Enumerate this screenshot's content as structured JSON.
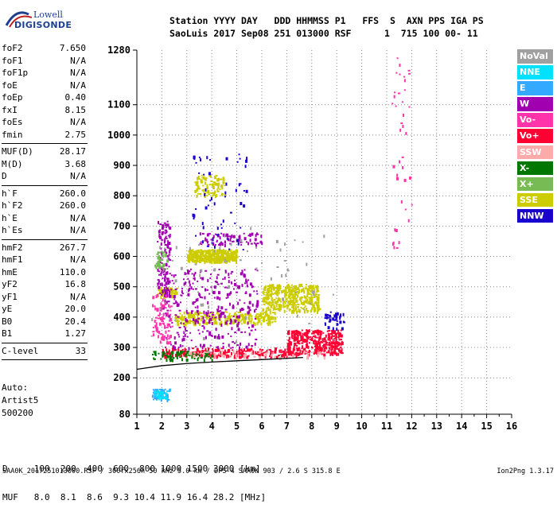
{
  "logo": {
    "line1": "Lowell",
    "line2": "DIGISONDE"
  },
  "header": {
    "row1": "Station YYYY DAY   DDD HHMMSS P1   FFS  S  AXN PPS IGA PS",
    "row2": "SaoLuis 2017 Sep08 251 013000 RSF      1  715 100 00- 11"
  },
  "params": [
    [
      {
        "k": "foF2",
        "v": "7.650"
      },
      {
        "k": "foF1",
        "v": "N/A"
      },
      {
        "k": "foF1p",
        "v": "N/A"
      },
      {
        "k": "foE",
        "v": "N/A"
      },
      {
        "k": "foEp",
        "v": "0.40"
      },
      {
        "k": "fxI",
        "v": "8.15"
      },
      {
        "k": "foEs",
        "v": "N/A"
      },
      {
        "k": "fmin",
        "v": "2.75"
      }
    ],
    [
      {
        "k": "MUF(D)",
        "v": "28.17"
      },
      {
        "k": "M(D)",
        "v": "3.68"
      },
      {
        "k": "D",
        "v": "N/A"
      }
    ],
    [
      {
        "k": "h`F",
        "v": "260.0"
      },
      {
        "k": "h`F2",
        "v": "260.0"
      },
      {
        "k": "h`E",
        "v": "N/A"
      },
      {
        "k": "h`Es",
        "v": "N/A"
      }
    ],
    [
      {
        "k": "hmF2",
        "v": "267.7"
      },
      {
        "k": "hmF1",
        "v": "N/A"
      },
      {
        "k": "hmE",
        "v": "110.0"
      },
      {
        "k": "yF2",
        "v": "16.8"
      },
      {
        "k": "yF1",
        "v": "N/A"
      },
      {
        "k": "yE",
        "v": "20.0"
      },
      {
        "k": "B0",
        "v": "20.4"
      },
      {
        "k": "B1",
        "v": "1.27"
      }
    ],
    [
      {
        "k": "C-level",
        "v": "33"
      }
    ]
  ],
  "autoscale": {
    "line1": "Auto:",
    "line2": "Artist5",
    "line3": "500200"
  },
  "legend": [
    {
      "label": "NoVal",
      "color": "#a0a0a0"
    },
    {
      "label": "NNE",
      "color": "#00e0ff"
    },
    {
      "label": "E",
      "color": "#33aaff"
    },
    {
      "label": "W",
      "color": "#a000b0"
    },
    {
      "label": "Vo-",
      "color": "#ff33aa"
    },
    {
      "label": "Vo+",
      "color": "#ff0033"
    },
    {
      "label": "SSW",
      "color": "#ffaaaa"
    },
    {
      "label": "X-",
      "color": "#007700"
    },
    {
      "label": "X+",
      "color": "#77bb55"
    },
    {
      "label": "SSE",
      "color": "#cccc00"
    },
    {
      "label": "NNW",
      "color": "#1a00cc"
    }
  ],
  "dtable": {
    "d_row": "D     100  200  400  600  800 1000 1500 3000 [km]",
    "muf_row": "MUF   8.0  8.1  8.6  9.3 10.4 11.9 16.4 28.2 [MHz]"
  },
  "footer": {
    "left": "SAA0K_2017251013000.RSF / 300fx256h 50 kHz 5.0 km / DPS-4 SAA0K 903 / 2.6 S 315.8 E",
    "right": "Ion2Png 1.3.17"
  },
  "chart_data": {
    "type": "scatter",
    "title": "",
    "xlabel": "",
    "ylabel": "",
    "xlim": [
      1,
      16
    ],
    "ylim": [
      80,
      1280
    ],
    "x_ticks": [
      1,
      2,
      3,
      4,
      5,
      6,
      7,
      8,
      9,
      10,
      11,
      12,
      13,
      14,
      15,
      16
    ],
    "y_ticks": [
      80,
      200,
      300,
      400,
      500,
      600,
      700,
      800,
      900,
      1000,
      1100,
      1280
    ],
    "grid": true,
    "trace_line": {
      "name": "profile",
      "color": "#000000",
      "x": [
        1.0,
        2.0,
        3.0,
        4.0,
        5.0,
        6.0,
        7.0,
        7.65
      ],
      "y": [
        228,
        240,
        247,
        252,
        256,
        260,
        264,
        267
      ]
    },
    "clusters": [
      {
        "series": "SSE",
        "color": "#cccc00",
        "x": [
          3.0,
          5.0
        ],
        "y": [
          585,
          625
        ],
        "n": 420
      },
      {
        "series": "SSE",
        "color": "#cccc00",
        "x": [
          6.0,
          8.3
        ],
        "y": [
          420,
          510
        ],
        "n": 380
      },
      {
        "series": "SSE",
        "color": "#cccc00",
        "x": [
          3.3,
          4.5
        ],
        "y": [
          800,
          870
        ],
        "n": 90
      },
      {
        "series": "SSE",
        "color": "#cccc00",
        "x": [
          2.5,
          6.5
        ],
        "y": [
          380,
          420
        ],
        "n": 260
      },
      {
        "series": "SSE",
        "color": "#cccc00",
        "x": [
          1.8,
          2.6
        ],
        "y": [
          470,
          500
        ],
        "n": 70
      },
      {
        "series": "Vo+",
        "color": "#ff0033",
        "x": [
          7.0,
          9.2
        ],
        "y": [
          280,
          360
        ],
        "n": 360
      },
      {
        "series": "Vo+",
        "color": "#ff0033",
        "x": [
          2.0,
          7.5
        ],
        "y": [
          272,
          300
        ],
        "n": 220
      },
      {
        "series": "W",
        "color": "#a000b0",
        "x": [
          2.0,
          5.8
        ],
        "y": [
          300,
          560
        ],
        "n": 340
      },
      {
        "series": "W",
        "color": "#a000b0",
        "x": [
          3.5,
          6.0
        ],
        "y": [
          640,
          680
        ],
        "n": 80
      },
      {
        "series": "W",
        "color": "#a000b0",
        "x": [
          1.8,
          2.3
        ],
        "y": [
          470,
          720
        ],
        "n": 120
      },
      {
        "series": "NNW",
        "color": "#1a00cc",
        "x": [
          3.2,
          5.4
        ],
        "y": [
          620,
          960
        ],
        "n": 60
      },
      {
        "series": "NNW",
        "color": "#1a00cc",
        "x": [
          8.5,
          9.3
        ],
        "y": [
          360,
          420
        ],
        "n": 40
      },
      {
        "series": "Vo-",
        "color": "#ff33aa",
        "x": [
          1.6,
          2.4
        ],
        "y": [
          320,
          480
        ],
        "n": 90
      },
      {
        "series": "Vo-",
        "color": "#ff33aa",
        "x": [
          11.2,
          12.0
        ],
        "y": [
          600,
          1260
        ],
        "n": 40
      },
      {
        "series": "X-",
        "color": "#007700",
        "x": [
          1.6,
          4.0
        ],
        "y": [
          262,
          290
        ],
        "n": 80
      },
      {
        "series": "X+",
        "color": "#77bb55",
        "x": [
          1.7,
          2.2
        ],
        "y": [
          560,
          620
        ],
        "n": 40
      },
      {
        "series": "E",
        "color": "#33aaff",
        "x": [
          1.6,
          2.3
        ],
        "y": [
          130,
          165
        ],
        "n": 60
      },
      {
        "series": "NNE",
        "color": "#00e0ff",
        "x": [
          1.6,
          2.2
        ],
        "y": [
          135,
          160
        ],
        "n": 30
      },
      {
        "series": "SSW",
        "color": "#ffaaaa",
        "x": [
          3.0,
          8.5
        ],
        "y": [
          268,
          292
        ],
        "n": 60
      },
      {
        "series": "NoVal",
        "color": "#a0a0a0",
        "x": [
          1.5,
          9.0
        ],
        "y": [
          270,
          700
        ],
        "n": 70
      }
    ]
  }
}
